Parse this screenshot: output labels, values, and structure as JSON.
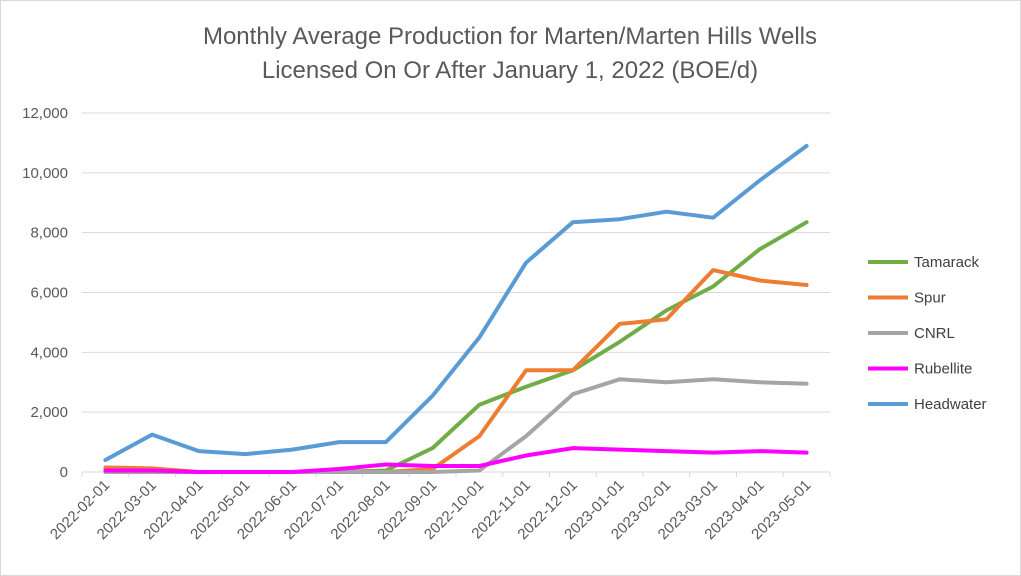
{
  "chart_data": {
    "type": "line",
    "title_lines": [
      "Monthly Average Production for Marten/Marten Hills Wells",
      "Licensed On Or After January 1, 2022 (BOE/d)"
    ],
    "xlabel": "",
    "ylabel": "",
    "categories": [
      "2022-02-01",
      "2022-03-01",
      "2022-04-01",
      "2022-05-01",
      "2022-06-01",
      "2022-07-01",
      "2022-08-01",
      "2022-09-01",
      "2022-10-01",
      "2022-11-01",
      "2022-12-01",
      "2023-01-01",
      "2023-02-01",
      "2023-03-01",
      "2023-04-01",
      "2023-05-01"
    ],
    "ylim": [
      0,
      12000
    ],
    "yticks": [
      0,
      2000,
      4000,
      6000,
      8000,
      10000,
      12000
    ],
    "ytick_labels": [
      "0",
      "2,000",
      "4,000",
      "6,000",
      "8,000",
      "10,000",
      "12,000"
    ],
    "grid": true,
    "legend_position": "right",
    "series": [
      {
        "name": "Tamarack",
        "color": "#70ad47",
        "values": [
          0,
          0,
          0,
          0,
          0,
          0,
          50,
          800,
          2250,
          2850,
          3400,
          4350,
          5400,
          6200,
          7450,
          8350
        ]
      },
      {
        "name": "Spur",
        "color": "#ed7d31",
        "values": [
          150,
          120,
          0,
          0,
          0,
          0,
          0,
          100,
          1200,
          3400,
          3400,
          4950,
          5100,
          6750,
          6400,
          6250
        ]
      },
      {
        "name": "CNRL",
        "color": "#a5a5a5",
        "values": [
          0,
          0,
          0,
          0,
          0,
          0,
          0,
          0,
          50,
          1200,
          2600,
          3100,
          3000,
          3100,
          3000,
          2950
        ]
      },
      {
        "name": "Rubellite",
        "color": "#ff00ff",
        "values": [
          50,
          50,
          0,
          0,
          0,
          100,
          250,
          200,
          200,
          550,
          800,
          750,
          700,
          650,
          700,
          650
        ]
      },
      {
        "name": "Headwater",
        "color": "#5b9bd5",
        "values": [
          400,
          1250,
          700,
          600,
          750,
          1000,
          1000,
          2550,
          4500,
          7000,
          8350,
          8450,
          8700,
          8500,
          9750,
          10900
        ]
      }
    ]
  }
}
